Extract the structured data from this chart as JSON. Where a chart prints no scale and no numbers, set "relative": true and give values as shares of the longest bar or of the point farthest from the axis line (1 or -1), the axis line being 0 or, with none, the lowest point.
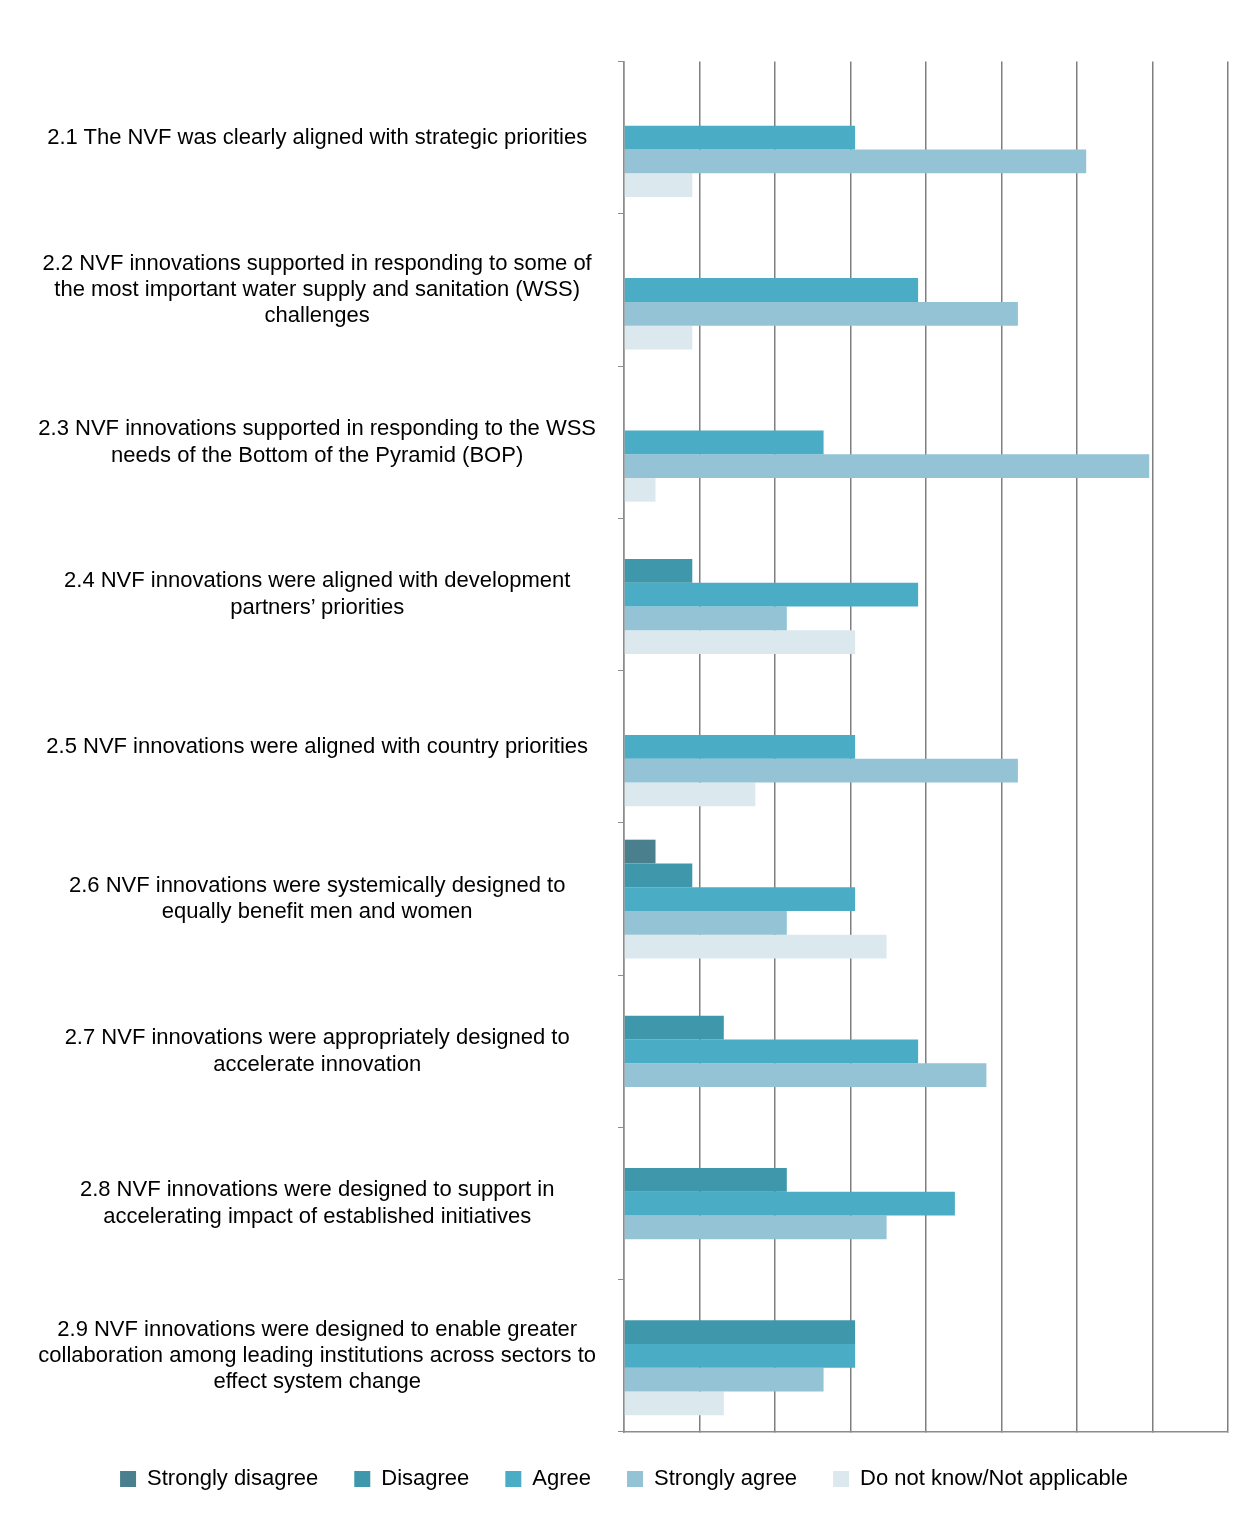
{
  "chart_data": {
    "type": "bar",
    "orientation": "horizontal",
    "relative": true,
    "grid": "x",
    "legend": "bottom",
    "categories": [
      "2.1 The NVF was clearly aligned with strategic priorities",
      "2.2 NVF innovations supported in responding to some of the most important water supply and sanitation (WSS) challenges",
      "2.3 NVF innovations supported in responding to the WSS needs of the Bottom of the Pyramid (BOP)",
      "2.4 NVF innovations were aligned with development partners’ priorities",
      "2.5 NVF innovations were aligned with country priorities",
      "2.6 NVF innovations were systemically designed to equally benefit men and women",
      "2.7 NVF innovations were appropriately designed to accelerate innovation",
      "2.8 NVF innovations were designed to support in accelerating impact of established initiatives",
      "2.9 NVF innovations were designed to enable greater collaboration among leading institutions across sectors to effect system change"
    ],
    "series": [
      {
        "name": "Strongly disagree",
        "color": "#4a7f8e",
        "values": [
          null,
          null,
          null,
          null,
          null,
          0.06,
          null,
          null,
          null
        ]
      },
      {
        "name": "Disagree",
        "color": "#3e97ab",
        "values": [
          null,
          null,
          null,
          0.13,
          null,
          0.13,
          0.19,
          0.31,
          0.44
        ]
      },
      {
        "name": "Agree",
        "color": "#4bacc6",
        "values": [
          0.44,
          0.56,
          0.38,
          0.56,
          0.44,
          0.44,
          0.56,
          0.63,
          0.44
        ]
      },
      {
        "name": "Strongly agree",
        "color": "#93c3d5",
        "values": [
          0.88,
          0.75,
          1,
          0.31,
          0.75,
          0.31,
          0.69,
          0.5,
          0.38
        ]
      },
      {
        "name": "Do not know/Not applicable",
        "color": "#dbe9ef",
        "values": [
          0.13,
          0.13,
          0.06,
          0.44,
          0.25,
          0.5,
          null,
          null,
          0.19
        ]
      }
    ]
  }
}
